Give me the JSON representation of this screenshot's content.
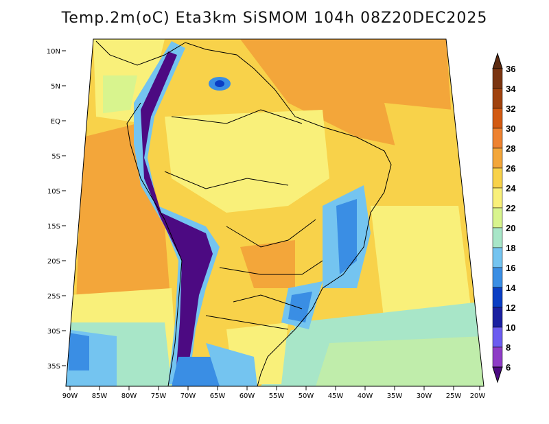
{
  "title": "Temp.2m(oC) Eta3km SiSMOM 104h 08Z20DEC2025",
  "lat_labels": [
    "10N",
    "5N",
    "EQ",
    "5S",
    "10S",
    "15S",
    "20S",
    "25S",
    "30S",
    "35S"
  ],
  "lon_labels": [
    "90W",
    "85W",
    "80W",
    "75W",
    "70W",
    "65W",
    "60W",
    "55W",
    "50W",
    "45W",
    "40W",
    "35W",
    "30W",
    "25W",
    "20W"
  ],
  "colorbar": {
    "labels": [
      "36",
      "34",
      "32",
      "30",
      "28",
      "26",
      "24",
      "22",
      "20",
      "18",
      "16",
      "14",
      "12",
      "10",
      "8",
      "6"
    ],
    "colors": [
      "#5c2a10",
      "#7a3410",
      "#a0420e",
      "#d25a12",
      "#ee8230",
      "#f3a63a",
      "#f8d24a",
      "#f9f07a",
      "#d8f48e",
      "#a8e6c8",
      "#74c4f0",
      "#3a8ee4",
      "#0a3ec4",
      "#1a20a0",
      "#6c5cf0",
      "#8e3cc6",
      "#4c0a82"
    ]
  },
  "icons": {
    "colorbar_top": "triangle-up-icon",
    "colorbar_bottom": "triangle-down-icon"
  }
}
